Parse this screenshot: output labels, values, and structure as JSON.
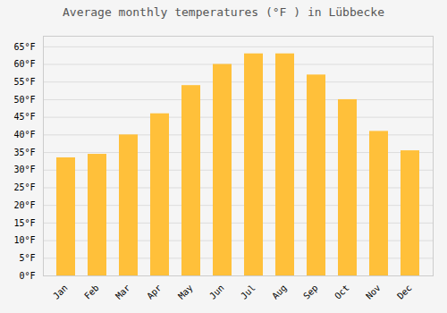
{
  "chart_data": {
    "type": "bar",
    "title": "Average monthly temperatures (°F ) in Lübbecke",
    "categories": [
      "Jan",
      "Feb",
      "Mar",
      "Apr",
      "May",
      "Jun",
      "Jul",
      "Aug",
      "Sep",
      "Oct",
      "Nov",
      "Dec"
    ],
    "values": [
      33.5,
      34.5,
      40.0,
      46.0,
      54.0,
      60.0,
      63.0,
      63.0,
      57.0,
      50.0,
      41.0,
      35.5
    ],
    "color": "#FFC03A",
    "ylim": [
      0,
      68
    ],
    "yticks": [
      {
        "value": 0,
        "label": "0°F"
      },
      {
        "value": 5,
        "label": "5°F"
      },
      {
        "value": 10,
        "label": "10°F"
      },
      {
        "value": 15,
        "label": "15°F"
      },
      {
        "value": 20,
        "label": "20°F"
      },
      {
        "value": 25,
        "label": "25°F"
      },
      {
        "value": 30,
        "label": "30°F"
      },
      {
        "value": 35,
        "label": "35°F"
      },
      {
        "value": 40,
        "label": "40°F"
      },
      {
        "value": 45,
        "label": "45°F"
      },
      {
        "value": 50,
        "label": "50°F"
      },
      {
        "value": 55,
        "label": "55°F"
      },
      {
        "value": 60,
        "label": "60°F"
      },
      {
        "value": 65,
        "label": "65°F"
      }
    ],
    "grid": true
  }
}
